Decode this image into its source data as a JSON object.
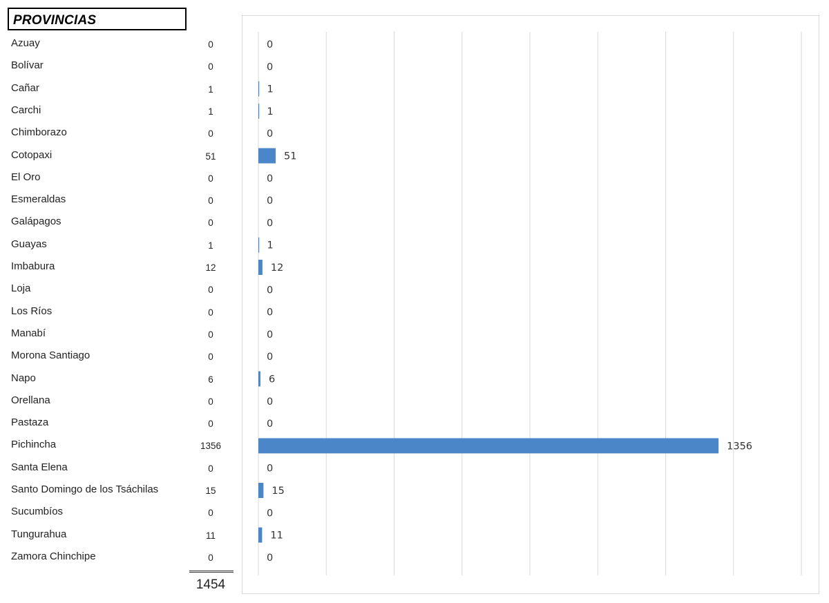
{
  "table": {
    "header": "PROVINCIAS",
    "total": "1454"
  },
  "chart_data": {
    "type": "bar",
    "orientation": "horizontal",
    "categories": [
      "Azuay",
      "Bolívar",
      "Cañar",
      "Carchi",
      "Chimborazo",
      "Cotopaxi",
      "El Oro",
      "Esmeraldas",
      "Galápagos",
      "Guayas",
      "Imbabura",
      "Loja",
      "Los Ríos",
      "Manabí",
      "Morona Santiago",
      "Napo",
      "Orellana",
      "Pastaza",
      "Pichincha",
      "Santa Elena",
      "Santo Domingo de los Tsáchilas",
      "Sucumbíos",
      "Tungurahua",
      "Zamora Chinchipe"
    ],
    "values": [
      0,
      0,
      1,
      1,
      0,
      51,
      0,
      0,
      0,
      1,
      12,
      0,
      0,
      0,
      0,
      6,
      0,
      0,
      1356,
      0,
      15,
      0,
      11,
      0
    ],
    "xlim": [
      0,
      1600
    ],
    "grid": true,
    "bar_color": "#4a86c8",
    "grid_color": "#d9d9d9"
  }
}
